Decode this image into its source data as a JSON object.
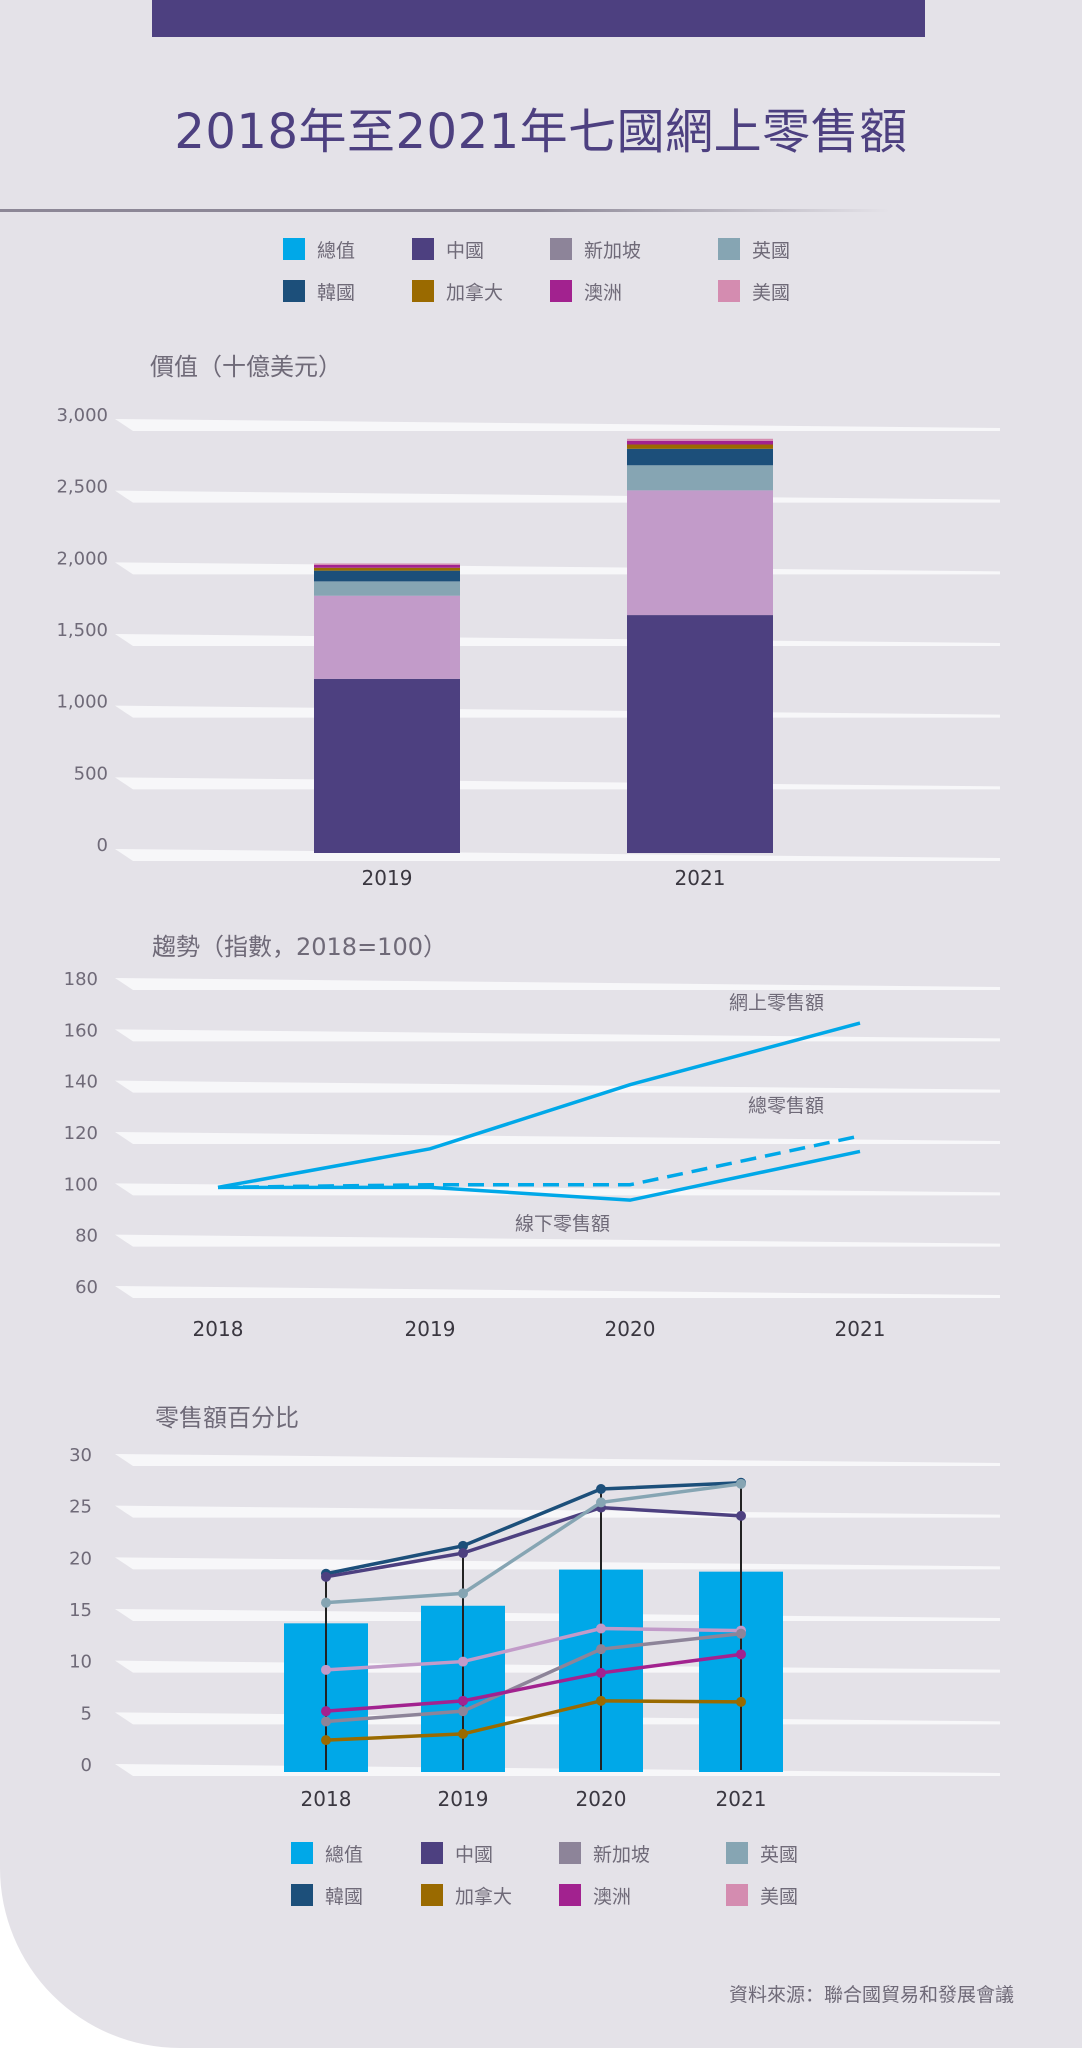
{
  "title": "2018年至2021年七國網上零售額",
  "source": "資料來源：聯合國貿易和發展會議",
  "legend": [
    {
      "name": "總值",
      "color": "#00a8e8"
    },
    {
      "name": "中國",
      "color": "#4d4080"
    },
    {
      "name": "新加坡",
      "color": "#8d8499"
    },
    {
      "name": "英國",
      "color": "#86a5b3"
    },
    {
      "name": "韓國",
      "color": "#1c4f7a"
    },
    {
      "name": "加拿大",
      "color": "#9a6a00"
    },
    {
      "name": "澳洲",
      "color": "#a2228f"
    },
    {
      "name": "美國",
      "color": "#d48cb0"
    }
  ],
  "chart_data": [
    {
      "type": "bar",
      "stacked": true,
      "title": "價值（十億美元）",
      "categories": [
        "2019",
        "2021"
      ],
      "ylim": [
        0,
        3000
      ],
      "yticks": [
        "0",
        "500",
        "1,000",
        "1,500",
        "2,000",
        "2,500",
        "3,000"
      ],
      "series": [
        {
          "name": "中國",
          "color": "#4d4080",
          "values": [
            1215,
            1660
          ]
        },
        {
          "name": "美國",
          "color": "#c29bc9",
          "values": [
            580,
            870
          ]
        },
        {
          "name": "英國",
          "color": "#86a5b3",
          "values": [
            100,
            175
          ]
        },
        {
          "name": "韓國",
          "color": "#1c4f7a",
          "values": [
            75,
            115
          ]
        },
        {
          "name": "加拿大",
          "color": "#9a6a00",
          "values": [
            20,
            30
          ]
        },
        {
          "name": "澳洲",
          "color": "#a2228f",
          "values": [
            20,
            25
          ]
        },
        {
          "name": "新加坡",
          "color": "#d48cb0",
          "values": [
            10,
            15
          ]
        }
      ]
    },
    {
      "type": "line",
      "title": "趨勢（指數，2018=100）",
      "x": [
        "2018",
        "2019",
        "2020",
        "2021"
      ],
      "ylim": [
        60,
        180
      ],
      "yticks": [
        "60",
        "80",
        "100",
        "120",
        "140",
        "160",
        "180"
      ],
      "series": [
        {
          "name": "網上零售額",
          "color": "#00a8e8",
          "style": "solid",
          "values": [
            100,
            115,
            140,
            164
          ]
        },
        {
          "name": "總零售額",
          "color": "#00a8e8",
          "style": "dashed",
          "values": [
            100,
            101,
            101,
            120
          ]
        },
        {
          "name": "線下零售額",
          "color": "#00a8e8",
          "style": "solid",
          "values": [
            100,
            100,
            95,
            114
          ]
        }
      ]
    },
    {
      "type": "bar",
      "title": "零售額百分比",
      "x": [
        "2018",
        "2019",
        "2020",
        "2021"
      ],
      "ylim": [
        0,
        30
      ],
      "yticks": [
        "0",
        "5",
        "10",
        "15",
        "20",
        "25",
        "30"
      ],
      "bars": {
        "name": "總值",
        "color": "#00a8e8",
        "values": [
          14.0,
          15.7,
          19.2,
          19.0
        ]
      },
      "series": [
        {
          "name": "韓國",
          "color": "#1c4f7a",
          "values": [
            18.8,
            21.5,
            27.0,
            27.6
          ]
        },
        {
          "name": "中國",
          "color": "#4d4080",
          "values": [
            18.5,
            20.8,
            25.2,
            24.4
          ]
        },
        {
          "name": "英國",
          "color": "#86a5b3",
          "values": [
            16.0,
            16.9,
            25.7,
            27.5
          ]
        },
        {
          "name": "美國",
          "color": "#c29bc9",
          "values": [
            9.5,
            10.3,
            13.5,
            13.3
          ]
        },
        {
          "name": "新加坡",
          "color": "#8d8499",
          "values": [
            4.5,
            5.5,
            11.5,
            13.0
          ]
        },
        {
          "name": "澳洲",
          "color": "#a2228f",
          "values": [
            5.5,
            6.5,
            9.2,
            11.0
          ]
        },
        {
          "name": "加拿大",
          "color": "#9a6a00",
          "values": [
            2.7,
            3.3,
            6.5,
            6.4
          ]
        }
      ]
    }
  ]
}
